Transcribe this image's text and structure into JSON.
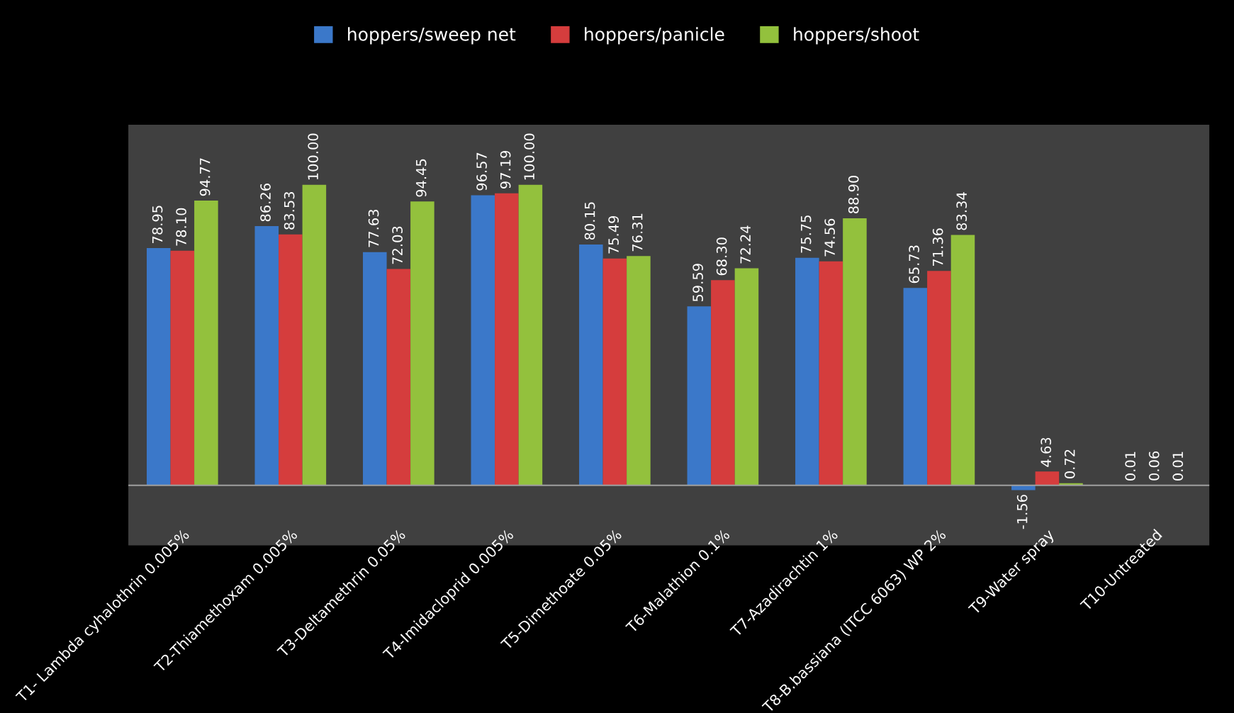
{
  "chart_data": {
    "type": "bar",
    "categories": [
      "T1- Lambda cyhalothrin 0.005%",
      "T2-Thiamethoxam 0.005%",
      "T3-Deltamethrin 0.05%",
      "T4-Imidacloprid 0.005%",
      "T5-Dimethoate 0.05%",
      "T6-Malathion 0.1%",
      "T7-Azadirachtin 1%",
      "T8-B.bassiana (ITCC 6063) WP 2%",
      "T9-Water spray",
      "T10-Untreated"
    ],
    "series": [
      {
        "name": "hoppers/sweep net",
        "color": "#3b78c9",
        "values": [
          78.95,
          86.26,
          77.63,
          96.57,
          80.15,
          59.59,
          75.75,
          65.73,
          -1.56,
          0.01
        ],
        "value_labels": [
          "78.95",
          "86.26",
          "77.63",
          "96.57",
          "80.15",
          "59.59",
          "75.75",
          "65.73",
          "-1.56",
          "0.01"
        ]
      },
      {
        "name": "hoppers/panicle",
        "color": "#d53d3d",
        "values": [
          78.1,
          83.53,
          72.03,
          97.19,
          75.49,
          68.3,
          74.56,
          71.36,
          4.63,
          0.06
        ],
        "value_labels": [
          "78.10",
          "83.53",
          "72.03",
          "97.19",
          "75.49",
          "68.30",
          "74.56",
          "71.36",
          "4.63",
          "0.06"
        ]
      },
      {
        "name": "hoppers/shoot",
        "color": "#93c13d",
        "values": [
          94.77,
          100.0,
          94.45,
          100.0,
          76.31,
          72.24,
          88.9,
          83.34,
          0.72,
          0.01
        ],
        "value_labels": [
          "94.77",
          "100.00",
          "94.45",
          "100.00",
          "76.31",
          "72.24",
          "88.90",
          "83.34",
          "0.72",
          "0.01"
        ]
      }
    ],
    "legend": "top",
    "grid": false
  }
}
